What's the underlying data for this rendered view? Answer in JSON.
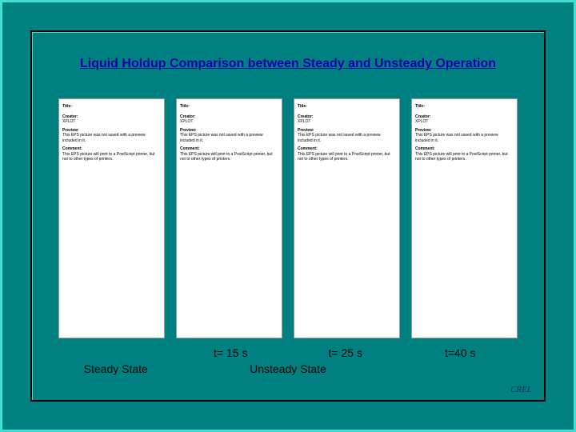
{
  "colors": {
    "slide_bg": "#008080",
    "frame_highlight": "#40e0d0",
    "title_color": "#0000aa",
    "panel_bg": "#ffffff",
    "text_color": "#000000",
    "logo_color": "#0a2a6a"
  },
  "title": "Liquid Holdup Comparison between Steady and Unsteady Operation",
  "panels": [
    {
      "title": "Title:",
      "creator_label": "Creator:",
      "creator_value": "XPLOT",
      "preview_label": "Preview:",
      "preview_value": "This EPS picture was not saved with a preview included in it.",
      "comment_label": "Comment:",
      "comment_value": "This EPS picture will print to a PostScript printer, but not to other types of printers."
    },
    {
      "title": "Title:",
      "creator_label": "Creator:",
      "creator_value": "XPLOT",
      "preview_label": "Preview:",
      "preview_value": "This EPS picture was not saved with a preview included in it.",
      "comment_label": "Comment:",
      "comment_value": "This EPS picture will print to a PostScript printer, but not to other types of printers."
    },
    {
      "title": "Title:",
      "creator_label": "Creator:",
      "creator_value": "XPLOT",
      "preview_label": "Preview:",
      "preview_value": "This EPS picture was not saved with a preview included in it.",
      "comment_label": "Comment:",
      "comment_value": "This EPS picture will print to a PostScript printer, but not to other types of printers."
    },
    {
      "title": "Title:",
      "creator_label": "Creator:",
      "creator_value": "XPLOT",
      "preview_label": "Preview:",
      "preview_value": "This EPS picture was not saved with a preview included in it.",
      "comment_label": "Comment:",
      "comment_value": "This EPS picture will print to a PostScript printer, but not to other types of printers."
    }
  ],
  "time_labels": [
    "",
    "t= 15 s",
    "t= 25 s",
    "t=40 s"
  ],
  "state_labels": {
    "steady": "Steady State",
    "unsteady": "Unsteady State"
  },
  "footer": "CREL"
}
